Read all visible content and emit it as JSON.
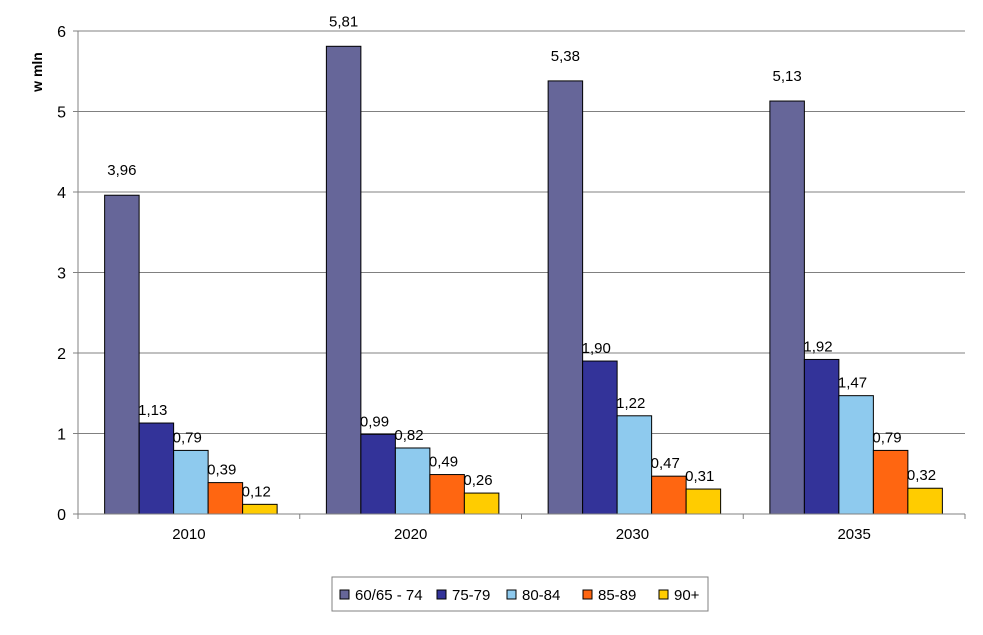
{
  "chart_data": {
    "type": "bar",
    "title": "",
    "xlabel": "",
    "ylabel": "w mln",
    "ylim": [
      0,
      6
    ],
    "yticks": [
      "0",
      "1",
      "2",
      "3",
      "4",
      "5",
      "6"
    ],
    "grid": true,
    "legend_position": "bottom",
    "categories": [
      "2010",
      "2020",
      "2030",
      "2035"
    ],
    "series": [
      {
        "name": "60/65 - 74",
        "color": "#666699",
        "values": [
          3.96,
          5.81,
          5.38,
          5.13
        ],
        "labels": [
          "3,96",
          "5,81",
          "5,38",
          "5,13"
        ]
      },
      {
        "name": "75-79",
        "color": "#333399",
        "values": [
          1.13,
          0.99,
          1.9,
          1.92
        ],
        "labels": [
          "1,13",
          "0,99",
          "1,90",
          "1,92"
        ]
      },
      {
        "name": "80-84",
        "color": "#8ECAEE",
        "values": [
          0.79,
          0.82,
          1.22,
          1.47
        ],
        "labels": [
          "0,79",
          "0,82",
          "1,22",
          "1,47"
        ]
      },
      {
        "name": "85-89",
        "color": "#FF6611",
        "values": [
          0.39,
          0.49,
          0.47,
          0.79
        ],
        "labels": [
          "0,39",
          "0,49",
          "0,47",
          "0,79"
        ]
      },
      {
        "name": "90+",
        "color": "#FFCC00",
        "values": [
          0.12,
          0.26,
          0.31,
          0.32
        ],
        "labels": [
          "0,12",
          "0,26",
          "0,31",
          "0,32"
        ]
      }
    ]
  }
}
